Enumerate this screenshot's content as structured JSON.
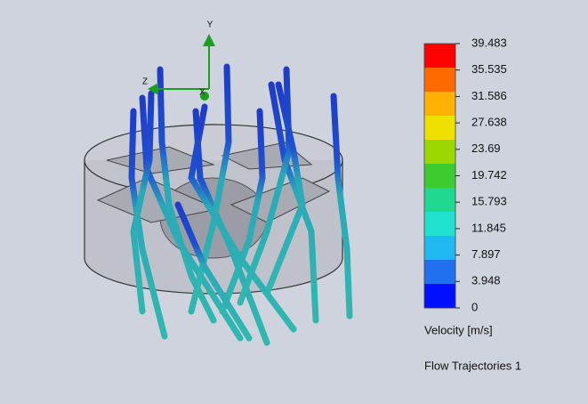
{
  "legend": {
    "ticks": [
      39.483,
      35.535,
      31.586,
      27.638,
      23.69,
      19.742,
      15.793,
      11.845,
      7.897,
      3.948,
      0
    ],
    "colors": [
      "#ff0000",
      "#ff6a00",
      "#ffb000",
      "#f0e000",
      "#9ad800",
      "#3ccc30",
      "#20d890",
      "#20e0d0",
      "#20b8f0",
      "#2070f0",
      "#0010ff"
    ],
    "title": "Velocity [m/s]"
  },
  "caption": "Flow Trajectories 1",
  "triad": {
    "y": "Y",
    "z": "Z",
    "x": "X"
  }
}
